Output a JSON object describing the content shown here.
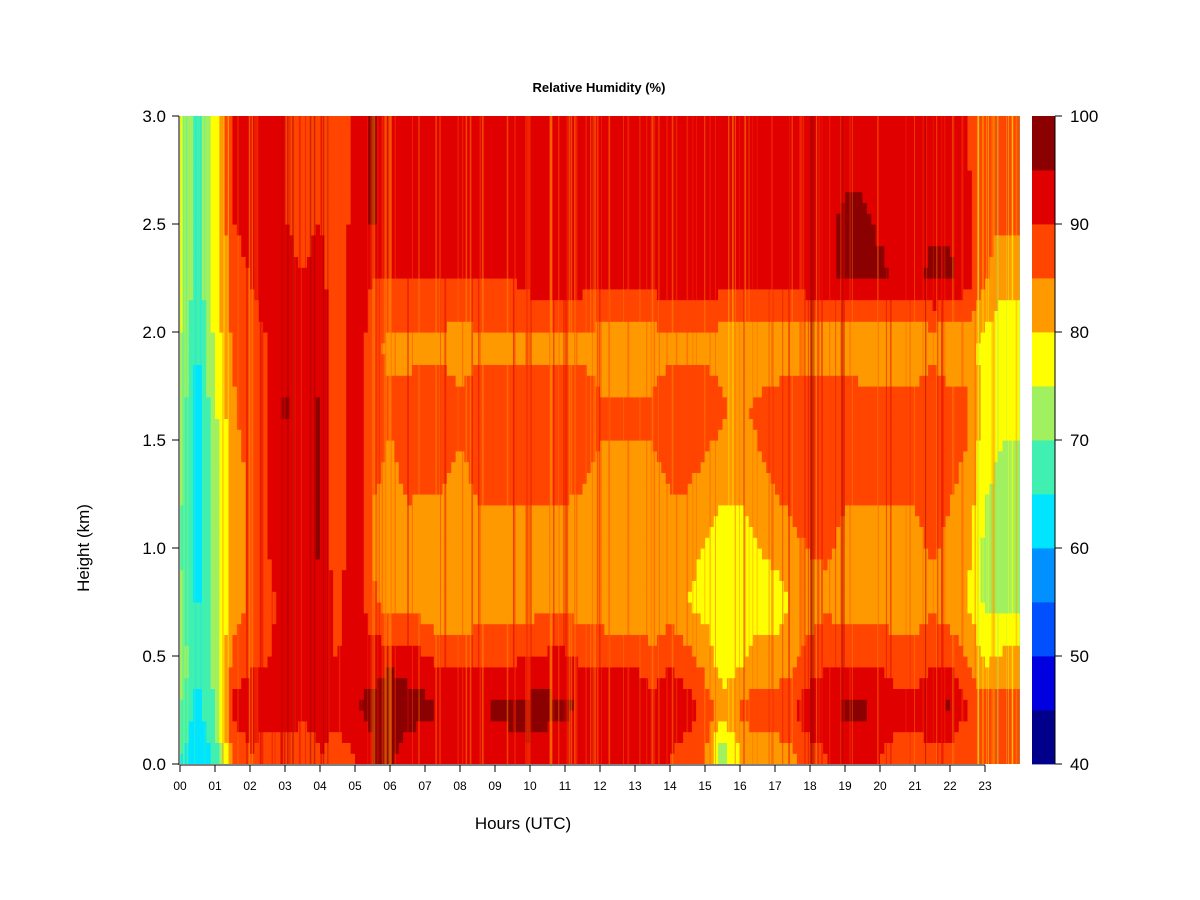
{
  "chart_data": {
    "type": "heatmap",
    "title": "Relative Humidity (%)",
    "xlabel": "Hours (UTC)",
    "ylabel": "Height (km)",
    "x_range": [
      0,
      24
    ],
    "y_range": [
      0,
      3
    ],
    "x_tick_labels": [
      "00",
      "01",
      "02",
      "03",
      "04",
      "05",
      "06",
      "07",
      "08",
      "09",
      "10",
      "11",
      "12",
      "13",
      "14",
      "15",
      "16",
      "17",
      "18",
      "19",
      "20",
      "21",
      "22",
      "23"
    ],
    "y_tick_labels": [
      "0.0",
      "0.5",
      "1.0",
      "1.5",
      "2.0",
      "2.5",
      "3.0"
    ],
    "colorbar": {
      "levels": [
        40,
        45,
        50,
        55,
        60,
        65,
        70,
        75,
        80,
        85,
        90,
        95,
        100
      ],
      "colors": [
        "#00008b",
        "#0000e0",
        "#0050ff",
        "#0090ff",
        "#00e5ff",
        "#40f0b0",
        "#a0f060",
        "#ffff00",
        "#ff9900",
        "#ff4500",
        "#e00000",
        "#8b0000"
      ],
      "tick_labels": [
        "40",
        "50",
        "60",
        "70",
        "80",
        "90",
        "100"
      ]
    },
    "heights_km": [
      0.05,
      0.25,
      0.45,
      0.75,
      1.05,
      1.35,
      1.65,
      1.95,
      2.25,
      2.55,
      2.85
    ],
    "hours": [
      0.0,
      0.5,
      1.0,
      1.5,
      2.0,
      2.5,
      3.0,
      3.5,
      4.0,
      4.5,
      5.0,
      5.5,
      6.0,
      6.5,
      7.0,
      7.5,
      8.0,
      8.5,
      9.0,
      9.5,
      10.0,
      10.5,
      11.0,
      11.5,
      12.0,
      12.5,
      13.0,
      13.5,
      14.0,
      14.5,
      15.0,
      15.5,
      16.0,
      16.5,
      17.0,
      17.5,
      18.0,
      18.5,
      19.0,
      19.5,
      20.0,
      20.5,
      21.0,
      21.5,
      22.0,
      22.5,
      23.0,
      23.5
    ],
    "rh_percent": [
      [
        65,
        62,
        66,
        86,
        90,
        88,
        88,
        86,
        90,
        88,
        90,
        95,
        96,
        93,
        90,
        90,
        90,
        92,
        92,
        94,
        94,
        92,
        90,
        90,
        90,
        92,
        92,
        90,
        90,
        88,
        86,
        72,
        80,
        82,
        82,
        84,
        88,
        90,
        90,
        90,
        90,
        88,
        88,
        88,
        88,
        85,
        85,
        86
      ],
      [
        70,
        63,
        70,
        92,
        92,
        92,
        92,
        92,
        92,
        92,
        95,
        96,
        97,
        97,
        97,
        94,
        92,
        94,
        96,
        96,
        97,
        97,
        96,
        95,
        95,
        94,
        94,
        92,
        94,
        92,
        88,
        82,
        86,
        88,
        88,
        90,
        94,
        94,
        96,
        96,
        95,
        92,
        92,
        95,
        96,
        90,
        88,
        88
      ],
      [
        74,
        65,
        72,
        87,
        90,
        90,
        92,
        90,
        92,
        90,
        94,
        94,
        95,
        94,
        92,
        90,
        90,
        90,
        90,
        90,
        92,
        92,
        92,
        90,
        90,
        90,
        90,
        88,
        90,
        88,
        84,
        78,
        80,
        82,
        82,
        84,
        88,
        90,
        90,
        90,
        90,
        88,
        88,
        90,
        90,
        86,
        80,
        82
      ],
      [
        72,
        64,
        72,
        82,
        86,
        88,
        92,
        92,
        94,
        88,
        94,
        86,
        82,
        84,
        82,
        80,
        80,
        82,
        82,
        82,
        82,
        84,
        84,
        82,
        82,
        80,
        80,
        80,
        82,
        80,
        78,
        76,
        76,
        78,
        78,
        80,
        82,
        84,
        82,
        82,
        82,
        82,
        82,
        84,
        82,
        80,
        74,
        74
      ],
      [
        70,
        62,
        72,
        82,
        86,
        90,
        94,
        92,
        96,
        86,
        96,
        84,
        82,
        84,
        82,
        82,
        82,
        84,
        84,
        84,
        84,
        84,
        84,
        82,
        82,
        80,
        80,
        80,
        82,
        82,
        80,
        78,
        78,
        80,
        82,
        84,
        86,
        86,
        84,
        84,
        84,
        84,
        84,
        86,
        84,
        82,
        74,
        72
      ],
      [
        72,
        62,
        72,
        82,
        86,
        90,
        94,
        90,
        96,
        86,
        96,
        86,
        84,
        86,
        86,
        86,
        84,
        86,
        86,
        86,
        86,
        86,
        86,
        86,
        84,
        84,
        84,
        84,
        86,
        86,
        84,
        82,
        82,
        84,
        86,
        88,
        88,
        88,
        86,
        86,
        86,
        86,
        86,
        88,
        86,
        84,
        76,
        74
      ],
      [
        74,
        62,
        74,
        84,
        88,
        90,
        96,
        90,
        96,
        86,
        96,
        86,
        86,
        86,
        88,
        88,
        86,
        88,
        88,
        88,
        88,
        88,
        88,
        88,
        86,
        86,
        86,
        86,
        88,
        88,
        88,
        86,
        84,
        86,
        88,
        90,
        90,
        90,
        90,
        88,
        88,
        88,
        88,
        90,
        88,
        86,
        78,
        76
      ],
      [
        76,
        64,
        76,
        86,
        88,
        90,
        94,
        90,
        94,
        86,
        96,
        86,
        84,
        84,
        84,
        84,
        82,
        84,
        84,
        84,
        84,
        84,
        84,
        84,
        82,
        82,
        82,
        82,
        84,
        84,
        84,
        82,
        80,
        80,
        80,
        80,
        80,
        80,
        80,
        80,
        80,
        80,
        80,
        82,
        80,
        82,
        78,
        76
      ],
      [
        78,
        66,
        78,
        88,
        90,
        92,
        92,
        90,
        92,
        86,
        94,
        90,
        90,
        90,
        90,
        90,
        90,
        90,
        90,
        90,
        92,
        92,
        94,
        92,
        92,
        92,
        92,
        92,
        94,
        94,
        94,
        92,
        92,
        92,
        92,
        92,
        94,
        94,
        96,
        96,
        96,
        94,
        94,
        96,
        96,
        92,
        86,
        82
      ],
      [
        78,
        66,
        78,
        90,
        92,
        92,
        90,
        88,
        90,
        86,
        92,
        96,
        92,
        92,
        92,
        92,
        92,
        92,
        92,
        92,
        92,
        94,
        94,
        94,
        94,
        94,
        94,
        94,
        94,
        94,
        94,
        94,
        94,
        94,
        94,
        94,
        94,
        94,
        96,
        96,
        94,
        94,
        94,
        94,
        94,
        92,
        86,
        86
      ],
      [
        78,
        66,
        78,
        90,
        92,
        92,
        90,
        88,
        90,
        86,
        92,
        96,
        92,
        92,
        92,
        92,
        92,
        92,
        92,
        92,
        92,
        92,
        92,
        92,
        92,
        92,
        92,
        92,
        92,
        92,
        92,
        92,
        92,
        92,
        92,
        92,
        92,
        92,
        92,
        92,
        92,
        92,
        92,
        92,
        92,
        90,
        86,
        86
      ]
    ]
  }
}
